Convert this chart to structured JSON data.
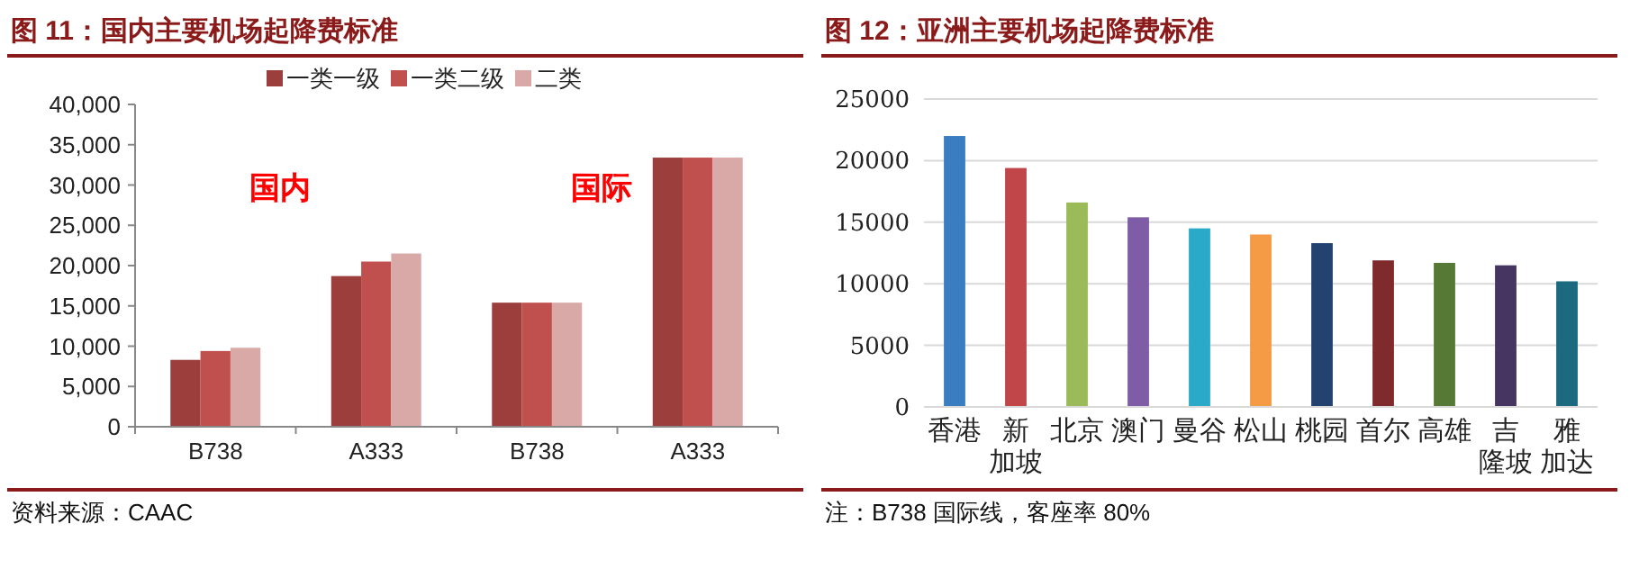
{
  "chart_data": [
    {
      "type": "bar",
      "title": "图 11：国内主要机场起降费标准",
      "categories": [
        "B738",
        "A333",
        "B738",
        "A333"
      ],
      "series": [
        {
          "name": "一类一级",
          "color": "#9b3e3c",
          "values": [
            8300,
            18700,
            15400,
            33400
          ]
        },
        {
          "name": "一类二级",
          "color": "#c0504d",
          "values": [
            9400,
            20500,
            15400,
            33400
          ]
        },
        {
          "name": "二类",
          "color": "#d9a9a8",
          "values": [
            9800,
            21500,
            15400,
            33400
          ]
        }
      ],
      "ylim": [
        0,
        40000
      ],
      "yticks": [
        0,
        {
          "value": 5000,
          "label": "5,000"
        },
        {
          "value": 10000,
          "label": "10,000"
        },
        {
          "value": 15000,
          "label": "15,000"
        },
        {
          "value": 20000,
          "label": "20,000"
        },
        {
          "value": 25000,
          "label": "25,000"
        },
        {
          "value": 30000,
          "label": "30,000"
        },
        {
          "value": 35000,
          "label": "35,000"
        },
        {
          "value": 40000,
          "label": "40,000"
        }
      ],
      "grid": false,
      "legend": "top",
      "annotations": [
        "国内",
        "国际",
        "资料来源：CAAC"
      ]
    },
    {
      "type": "bar",
      "title": "图 12：亚洲主要机场起降费标准",
      "categories": [
        "香港",
        "新加坡",
        "北京",
        "澳门",
        "曼谷",
        "松山",
        "桃园",
        "首尔",
        "高雄",
        "吉隆坡",
        "雅加达"
      ],
      "values": [
        22000,
        19400,
        16600,
        15400,
        14500,
        14000,
        13300,
        11900,
        11700,
        11500,
        10200
      ],
      "colors": [
        "#3a7dc0",
        "#c0464a",
        "#9bbb59",
        "#7e5ca6",
        "#2aa9c8",
        "#f59a45",
        "#24426f",
        "#7f2a2c",
        "#567a36",
        "#453560",
        "#1b6a80"
      ],
      "ylim": [
        0,
        25000
      ],
      "yticks": [
        0,
        5000,
        10000,
        15000,
        20000,
        25000
      ],
      "grid": "y",
      "annotations": [
        "注：B738 国际线，客座率 80%"
      ]
    }
  ]
}
